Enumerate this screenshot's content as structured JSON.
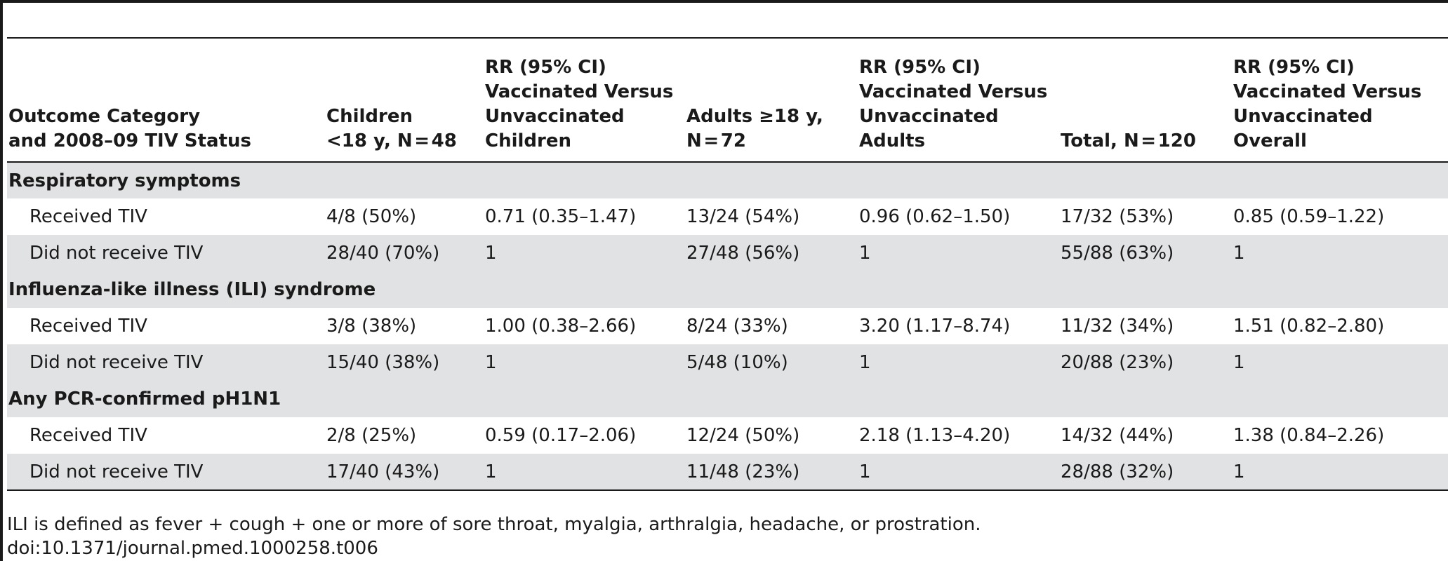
{
  "table": {
    "headers": [
      [
        "Outcome Category",
        "and 2008–09 TIV Status"
      ],
      [
        "Children",
        "<18 y, N = 48"
      ],
      [
        "RR (95% CI)",
        "Vaccinated Versus",
        "Unvaccinated",
        "Children"
      ],
      [
        "Adults ≥18 y,",
        "N = 72"
      ],
      [
        "RR (95% CI)",
        "Vaccinated Versus",
        "Unvaccinated",
        "Adults"
      ],
      [
        "Total, N = 120"
      ],
      [
        "RR (95% CI)",
        "Vaccinated Versus",
        "Unvaccinated Overall"
      ]
    ],
    "rows": [
      {
        "type": "section",
        "cells": [
          "Respiratory symptoms",
          "",
          "",
          "",
          "",
          "",
          ""
        ]
      },
      {
        "type": "data",
        "cells": [
          "Received TIV",
          "4/8 (50%)",
          "0.71 (0.35–1.47)",
          "13/24 (54%)",
          "0.96 (0.62–1.50)",
          "17/32 (53%)",
          "0.85 (0.59–1.22)"
        ]
      },
      {
        "type": "data",
        "cells": [
          "Did not receive TIV",
          "28/40 (70%)",
          "1",
          "27/48 (56%)",
          "1",
          "55/88 (63%)",
          "1"
        ]
      },
      {
        "type": "section",
        "cells": [
          "Influenza-like illness (ILI) syndrome",
          "",
          "",
          "",
          "",
          "",
          ""
        ]
      },
      {
        "type": "data",
        "cells": [
          "Received TIV",
          "3/8 (38%)",
          "1.00 (0.38–2.66)",
          "8/24 (33%)",
          "3.20 (1.17–8.74)",
          "11/32 (34%)",
          "1.51 (0.82–2.80)"
        ]
      },
      {
        "type": "data",
        "cells": [
          "Did not receive TIV",
          "15/40 (38%)",
          "1",
          "5/48 (10%)",
          "1",
          "20/88 (23%)",
          "1"
        ]
      },
      {
        "type": "section",
        "cells": [
          "Any PCR-confirmed pH1N1",
          "",
          "",
          "",
          "",
          "",
          ""
        ]
      },
      {
        "type": "data",
        "cells": [
          "Received TIV",
          "2/8 (25%)",
          "0.59 (0.17–2.06)",
          "12/24 (50%)",
          "2.18 (1.13–4.20)",
          "14/32 (44%)",
          "1.38 (0.84–2.26)"
        ]
      },
      {
        "type": "data",
        "cells": [
          "Did not receive TIV",
          "17/40 (43%)",
          "1",
          "11/48 (23%)",
          "1",
          "28/88 (32%)",
          "1"
        ]
      }
    ]
  },
  "footnotes": {
    "definition": "ILI is defined as fever + cough + one or more of sore throat, myalgia, arthralgia, headache, or prostration.",
    "doi": "doi:10.1371/journal.pmed.1000258.t006"
  },
  "colors": {
    "shaded_row": "#e1e2e3",
    "rule": "#1a1a1a"
  }
}
